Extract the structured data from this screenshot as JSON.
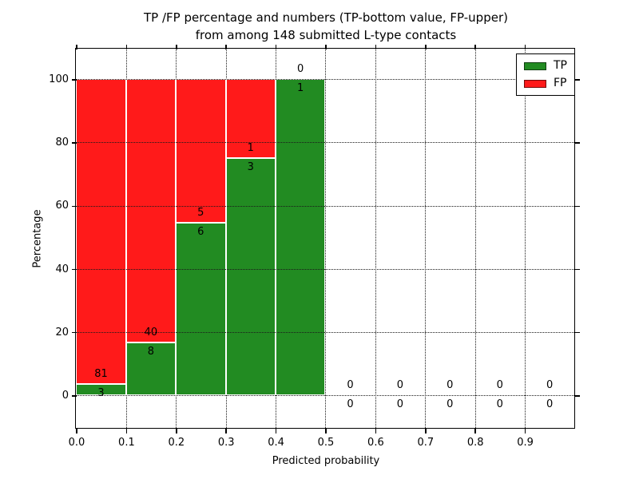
{
  "figure": {
    "background": "#ffffff"
  },
  "chart_data": {
    "type": "bar",
    "stacked": true,
    "title_lines": [
      "TP /FP percentage and numbers (TP-bottom value, FP-upper)",
      "from among 148 submitted L-type contacts"
    ],
    "xlabel": "Predicted probability",
    "ylabel": "Percentage",
    "total_contacts": 148,
    "x_ticks": [
      "0.0",
      "0.1",
      "0.2",
      "0.3",
      "0.4",
      "0.5",
      "0.6",
      "0.7",
      "0.8",
      "0.9"
    ],
    "y_ticks": [
      0,
      20,
      40,
      60,
      80,
      100
    ],
    "xlim": [
      0.0,
      1.0
    ],
    "ylim": [
      -10.4,
      109.6
    ],
    "grid": "dotted",
    "bins": [
      {
        "range": [
          0.0,
          0.1
        ],
        "tp": 3,
        "fp": 81,
        "tp_pct": 3.6
      },
      {
        "range": [
          0.1,
          0.2
        ],
        "tp": 8,
        "fp": 40,
        "tp_pct": 16.7
      },
      {
        "range": [
          0.2,
          0.3
        ],
        "tp": 6,
        "fp": 5,
        "tp_pct": 54.5
      },
      {
        "range": [
          0.3,
          0.4
        ],
        "tp": 3,
        "fp": 1,
        "tp_pct": 75.0
      },
      {
        "range": [
          0.4,
          0.5
        ],
        "tp": 1,
        "fp": 0,
        "tp_pct": 100.0
      },
      {
        "range": [
          0.5,
          0.6
        ],
        "tp": 0,
        "fp": 0,
        "tp_pct": 0
      },
      {
        "range": [
          0.6,
          0.7
        ],
        "tp": 0,
        "fp": 0,
        "tp_pct": 0
      },
      {
        "range": [
          0.7,
          0.8
        ],
        "tp": 0,
        "fp": 0,
        "tp_pct": 0
      },
      {
        "range": [
          0.8,
          0.9
        ],
        "tp": 0,
        "fp": 0,
        "tp_pct": 0
      },
      {
        "range": [
          0.9,
          1.0
        ],
        "tp": 0,
        "fp": 0,
        "tp_pct": 0
      }
    ],
    "colors": {
      "tp": "#228b22",
      "fp": "#ff1a1a",
      "grid": "#1a1a1a",
      "bar_edge": "#ffffff"
    },
    "legend": [
      {
        "label": "TP",
        "color": "#228b22"
      },
      {
        "label": "FP",
        "color": "#ff1a1a"
      }
    ],
    "legend_position": "upper right"
  }
}
